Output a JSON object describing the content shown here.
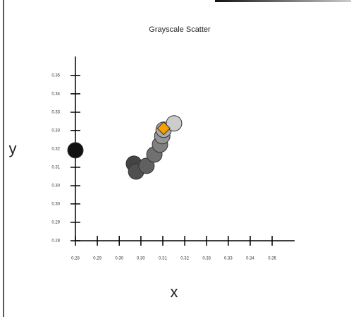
{
  "chart_data": {
    "type": "scatter",
    "title": "Grayscale Scatter",
    "xlabel": "x",
    "ylabel": "y",
    "xlim": [
      0.28,
      0.358
    ],
    "ylim": [
      0.28,
      0.358
    ],
    "xticks": [
      {
        "value": 0.28,
        "label": "0.28"
      },
      {
        "value": 0.2878,
        "label": "0.29"
      },
      {
        "value": 0.2956,
        "label": "0.30"
      },
      {
        "value": 0.3033,
        "label": "0.30"
      },
      {
        "value": 0.3111,
        "label": "0.31"
      },
      {
        "value": 0.3189,
        "label": "0.32"
      },
      {
        "value": 0.3267,
        "label": "0.33"
      },
      {
        "value": 0.3344,
        "label": "0.33"
      },
      {
        "value": 0.3422,
        "label": "0.34"
      },
      {
        "value": 0.35,
        "label": "0.35"
      }
    ],
    "yticks": [
      {
        "value": 0.28,
        "label": "0.28"
      },
      {
        "value": 0.2878,
        "label": "0.29"
      },
      {
        "value": 0.2956,
        "label": "0.30"
      },
      {
        "value": 0.3033,
        "label": "0.30"
      },
      {
        "value": 0.3111,
        "label": "0.31"
      },
      {
        "value": 0.3189,
        "label": "0.32"
      },
      {
        "value": 0.3267,
        "label": "0.33"
      },
      {
        "value": 0.3344,
        "label": "0.33"
      },
      {
        "value": 0.3422,
        "label": "0.34"
      },
      {
        "value": 0.35,
        "label": "0.35"
      }
    ],
    "series": [
      {
        "marker": "circle",
        "x": [
          0.28,
          0.3008,
          0.3016,
          0.3053,
          0.3081,
          0.3101,
          0.3109,
          0.3114,
          0.3151
        ],
        "values": [
          0.3183,
          0.3126,
          0.3093,
          0.3117,
          0.3165,
          0.3207,
          0.3243,
          0.327,
          0.3297
        ],
        "colors": [
          "#111111",
          "#444444",
          "#505050",
          "#606060",
          "#707070",
          "#808080",
          "#959595",
          "#aaaaaa",
          "#cccccc"
        ]
      },
      {
        "marker": "diamond",
        "x": [
          0.3114
        ],
        "values": [
          0.3276
        ],
        "color": "#f5a000"
      }
    ]
  }
}
